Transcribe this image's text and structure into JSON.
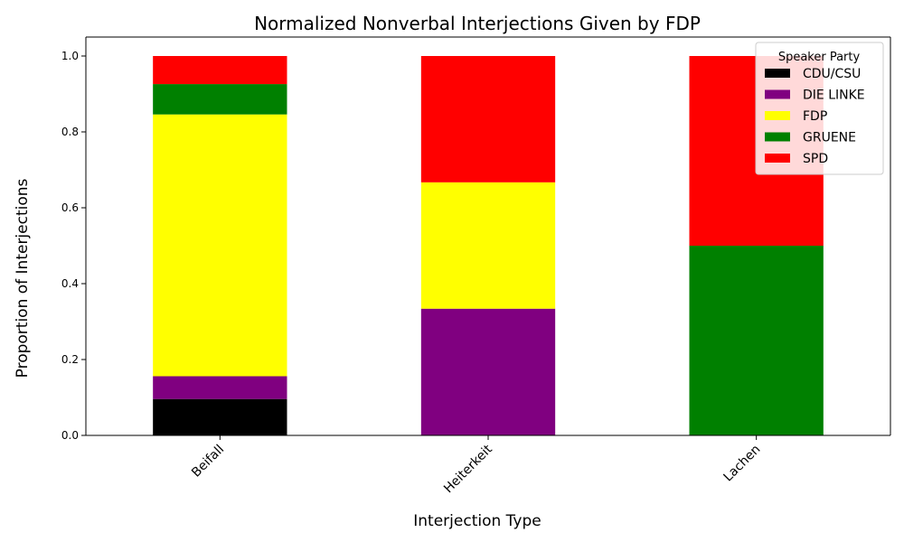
{
  "chart_data": {
    "type": "bar",
    "stacked": true,
    "title": "Normalized Nonverbal Interjections Given by FDP",
    "xlabel": "Interjection Type",
    "ylabel": "Proportion of Interjections",
    "categories": [
      "Beifall",
      "Heiterkeit",
      "Lachen"
    ],
    "ylim": [
      0,
      1.05
    ],
    "yticks": [
      "0.0",
      "0.2",
      "0.4",
      "0.6",
      "0.8",
      "1.0"
    ],
    "grid": false,
    "legend": {
      "title": "Speaker Party",
      "placement": "top-right"
    },
    "series": [
      {
        "name": "CDU/CSU",
        "color": "#000000",
        "values": [
          0.096,
          0.0,
          0.0
        ]
      },
      {
        "name": "DIE LINKE",
        "color": "#800080",
        "values": [
          0.06,
          0.334,
          0.0
        ]
      },
      {
        "name": "FDP",
        "color": "#ffff00",
        "values": [
          0.69,
          0.333,
          0.0
        ]
      },
      {
        "name": "GRUENE",
        "color": "#008000",
        "values": [
          0.08,
          0.0,
          0.5
        ]
      },
      {
        "name": "SPD",
        "color": "#ff0000",
        "values": [
          0.074,
          0.333,
          0.5
        ]
      }
    ]
  }
}
